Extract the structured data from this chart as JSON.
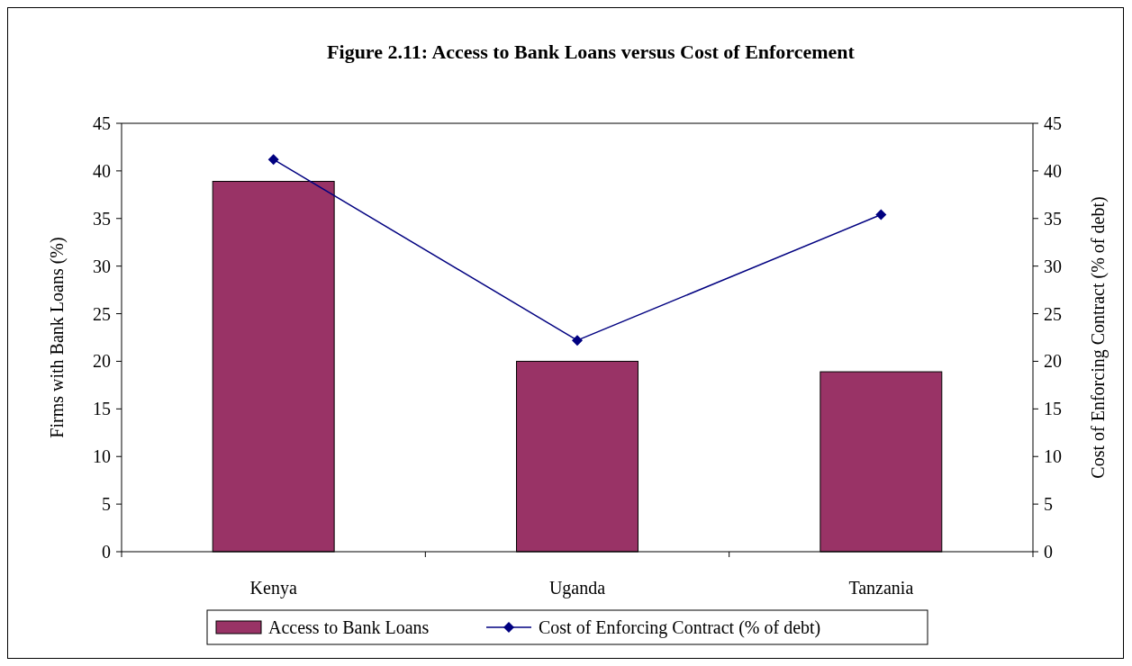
{
  "chart_data": {
    "type": "bar",
    "title": "Figure 2.11: Access to Bank Loans versus Cost of Enforcement",
    "ylabel": "Firms with Bank Loans (%)",
    "y2label": "Cost of Enforcing Contract (% of debt)",
    "categories": [
      "Kenya",
      "Uganda",
      "Tanzania"
    ],
    "series": [
      {
        "name": "Access to Bank Loans",
        "color": "#993366",
        "values": [
          38.9,
          20,
          18.9
        ]
      },
      {
        "name": "Cost of Enforcing Contract (% of debt)",
        "type": "line",
        "axis": "y2",
        "color": "#000080",
        "values": [
          41.2,
          22.2,
          35.4
        ],
        "marker": "diamond",
        "line_style": "solid"
      }
    ],
    "ylim": [
      0,
      45
    ],
    "yticks": [
      0,
      5,
      10,
      15,
      20,
      25,
      30,
      35,
      40,
      45
    ],
    "y2lim": [
      0,
      45
    ],
    "y2ticks": [
      0,
      5,
      10,
      15,
      20,
      25,
      30,
      35,
      40,
      45
    ],
    "grid": false,
    "legend": "bottom"
  }
}
